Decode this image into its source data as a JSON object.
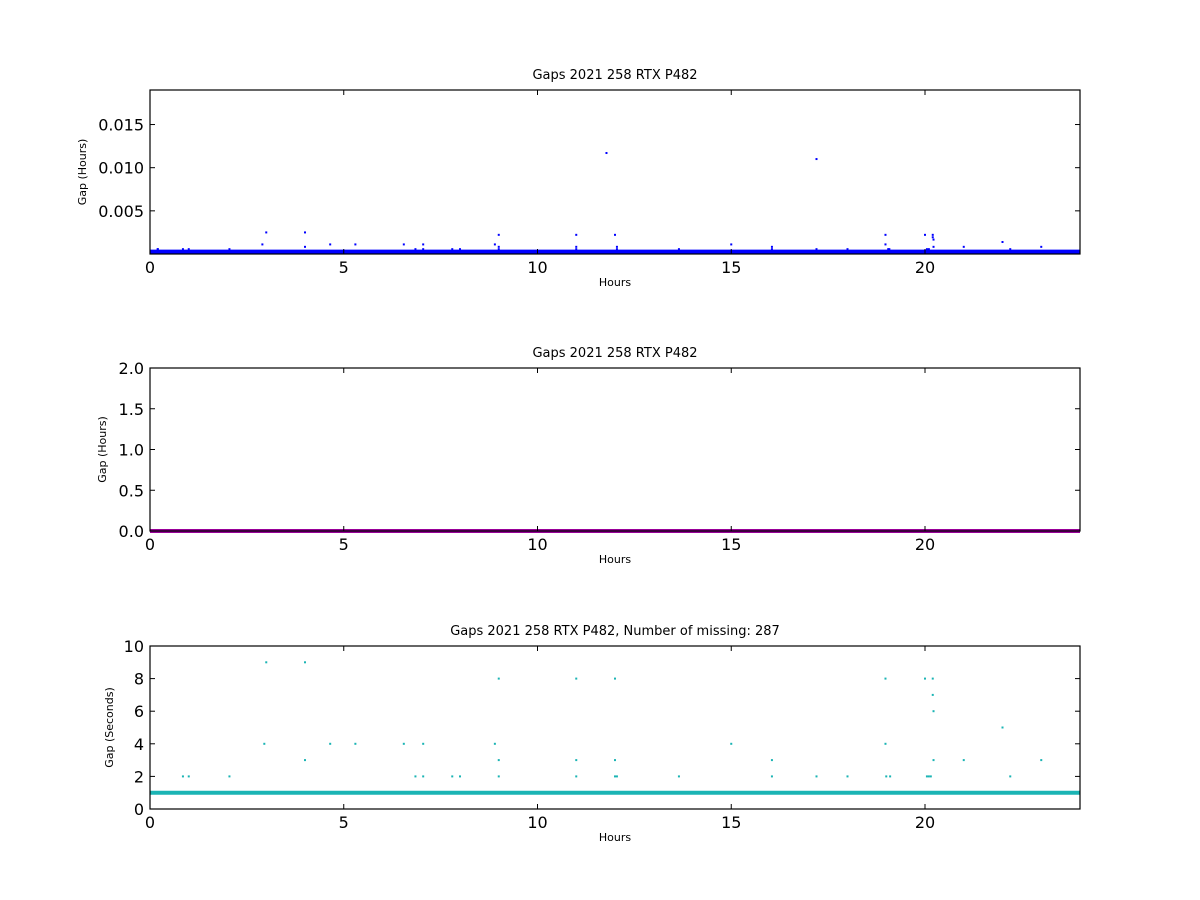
{
  "chart_data": [
    {
      "type": "scatter",
      "title": "Gaps 2021 258 RTX  P482",
      "xlabel": "Hours",
      "ylabel": "Gap (Hours)",
      "xlim": [
        0,
        24
      ],
      "ylim": [
        0,
        0.019
      ],
      "xticks": [
        0,
        5,
        10,
        15,
        20
      ],
      "xtick_labels": [
        "0",
        "5",
        "10",
        "15",
        "20"
      ],
      "yticks": [
        0.005,
        0.01,
        0.015
      ],
      "ytick_labels": [
        "0.005",
        "0.010",
        "0.015"
      ],
      "grid": false,
      "color": "#0000ff",
      "baseline": {
        "y": 0.000278,
        "x_range": [
          0,
          24
        ]
      },
      "points": {
        "x": [
          0.85,
          2.05,
          2.9,
          3.0,
          4.0,
          4.0,
          4.65,
          5.3,
          6.55,
          6.85,
          7.05,
          7.05,
          7.8,
          8.0,
          8.9,
          9.0,
          9.0,
          9.0,
          11.0,
          11.0,
          11.0,
          11.78,
          12.0,
          12.05,
          12.05,
          13.65,
          15.0,
          16.05,
          16.05,
          17.2,
          17.2,
          18.0,
          18.98,
          18.98,
          19.05,
          19.08,
          20.0,
          20.05,
          20.1,
          20.2,
          20.2,
          20.22,
          20.22,
          21.0,
          22.0,
          22.2,
          23.0,
          0.2,
          1.0,
          0.2
        ],
        "y": [
          0.00056,
          0.00056,
          0.00111,
          0.0025,
          0.00083,
          0.0025,
          0.00111,
          0.00111,
          0.00111,
          0.00056,
          0.00111,
          0.00056,
          0.00056,
          0.00056,
          0.00111,
          0.00083,
          0.00222,
          0.00056,
          0.00222,
          0.00083,
          0.00056,
          0.0117,
          0.00222,
          0.00083,
          0.00056,
          0.00056,
          0.00111,
          0.00083,
          0.00056,
          0.011,
          0.00056,
          0.00056,
          0.00222,
          0.00111,
          0.00056,
          0.00056,
          0.00222,
          0.00056,
          0.00056,
          0.00222,
          0.00194,
          0.00167,
          0.00083,
          0.00083,
          0.00139,
          0.00056,
          0.00083,
          0.00056,
          0.00056,
          0.00056
        ]
      }
    },
    {
      "type": "scatter",
      "title": "Gaps 2021 258 RTX  P482",
      "xlabel": "Hours",
      "ylabel": "Gap (Hours)",
      "xlim": [
        0,
        24
      ],
      "ylim": [
        0,
        2.0
      ],
      "xticks": [
        0,
        5,
        10,
        15,
        20
      ],
      "xtick_labels": [
        "0",
        "5",
        "10",
        "15",
        "20"
      ],
      "yticks": [
        0.0,
        0.5,
        1.0,
        1.5,
        2.0
      ],
      "ytick_labels": [
        "0.0",
        "0.5",
        "1.0",
        "1.5",
        "2.0"
      ],
      "grid": false,
      "color": "#990099",
      "baseline": {
        "y": 0.0,
        "x_range": [
          0,
          24
        ]
      },
      "points": {
        "x": [],
        "y": []
      }
    },
    {
      "type": "scatter",
      "title": "Gaps 2021 258 RTX  P482, Number of missing: 287",
      "xlabel": "Hours",
      "ylabel": "Gap (Seconds)",
      "xlim": [
        0,
        24
      ],
      "ylim": [
        0,
        10
      ],
      "xticks": [
        0,
        5,
        10,
        15,
        20
      ],
      "xtick_labels": [
        "0",
        "5",
        "10",
        "15",
        "20"
      ],
      "yticks": [
        0,
        2,
        4,
        6,
        8,
        10
      ],
      "ytick_labels": [
        "0",
        "2",
        "4",
        "6",
        "8",
        "10"
      ],
      "grid": false,
      "color": "#1ab4b4",
      "baseline": {
        "y": 1.0,
        "x_range": [
          0,
          24
        ]
      },
      "points": {
        "x": [
          0.85,
          1.0,
          2.05,
          2.95,
          3.0,
          4.0,
          4.0,
          4.65,
          5.3,
          6.55,
          6.85,
          7.05,
          7.05,
          7.8,
          8.0,
          8.9,
          9.0,
          9.0,
          9.0,
          11.0,
          11.0,
          11.0,
          12.0,
          12.0,
          12.0,
          12.05,
          13.65,
          15.0,
          16.05,
          16.05,
          17.2,
          18.0,
          18.98,
          18.98,
          19.0,
          19.1,
          20.0,
          20.05,
          20.1,
          20.15,
          20.2,
          20.2,
          20.22,
          20.22,
          21.0,
          22.0,
          22.2,
          23.0
        ],
        "y": [
          2,
          2,
          2,
          4,
          9,
          9,
          3,
          4,
          4,
          4,
          2,
          4,
          2,
          2,
          2,
          4,
          8,
          3,
          2,
          8,
          3,
          2,
          8,
          3,
          2,
          2,
          2,
          4,
          3,
          2,
          2,
          2,
          8,
          4,
          2,
          2,
          8,
          2,
          2,
          2,
          8,
          7,
          6,
          3,
          3,
          5,
          2,
          3
        ]
      }
    }
  ]
}
